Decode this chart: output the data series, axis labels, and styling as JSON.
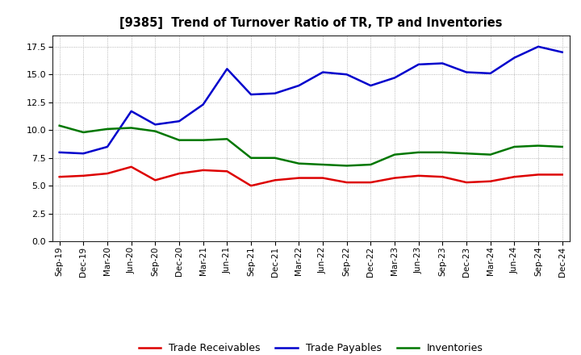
{
  "title": "[9385]  Trend of Turnover Ratio of TR, TP and Inventories",
  "x_labels": [
    "Sep-19",
    "Dec-19",
    "Mar-20",
    "Jun-20",
    "Sep-20",
    "Dec-20",
    "Mar-21",
    "Jun-21",
    "Sep-21",
    "Dec-21",
    "Mar-22",
    "Jun-22",
    "Sep-22",
    "Dec-22",
    "Mar-23",
    "Jun-23",
    "Sep-23",
    "Dec-23",
    "Mar-24",
    "Jun-24",
    "Sep-24",
    "Dec-24"
  ],
  "trade_receivables": [
    5.8,
    5.9,
    6.1,
    6.7,
    5.5,
    6.1,
    6.4,
    6.3,
    5.0,
    5.5,
    5.7,
    5.7,
    5.3,
    5.3,
    5.7,
    5.9,
    5.8,
    5.3,
    5.4,
    5.8,
    6.0,
    6.0
  ],
  "trade_payables": [
    8.0,
    7.9,
    8.5,
    11.7,
    10.5,
    10.8,
    12.3,
    15.5,
    13.2,
    13.3,
    14.0,
    15.2,
    15.0,
    14.0,
    14.7,
    15.9,
    16.0,
    15.2,
    15.1,
    16.5,
    17.5,
    17.0
  ],
  "inventories": [
    10.4,
    9.8,
    10.1,
    10.2,
    9.9,
    9.1,
    9.1,
    9.2,
    7.5,
    7.5,
    7.0,
    6.9,
    6.8,
    6.9,
    7.8,
    8.0,
    8.0,
    7.9,
    7.8,
    8.5,
    8.6,
    8.5
  ],
  "tr_color": "#dd0000",
  "tp_color": "#0000cc",
  "inv_color": "#007700",
  "ylim": [
    0.0,
    18.5
  ],
  "yticks": [
    0.0,
    2.5,
    5.0,
    7.5,
    10.0,
    12.5,
    15.0,
    17.5
  ],
  "background_color": "#ffffff",
  "grid_color": "#999999",
  "legend_tr": "Trade Receivables",
  "legend_tp": "Trade Payables",
  "legend_inv": "Inventories"
}
